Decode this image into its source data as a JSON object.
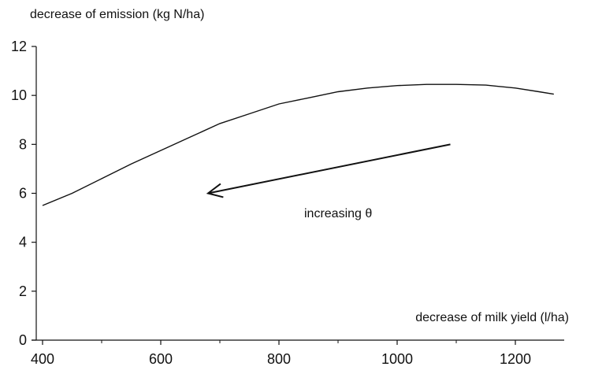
{
  "chart_data": {
    "type": "line",
    "title": "",
    "ylabel": "decrease of emission (kg N/ha)",
    "xlabel": "decrease of milk yield (l/ha)",
    "xlim": [
      400,
      1300
    ],
    "ylim": [
      0,
      12
    ],
    "x_ticks": [
      "400",
      "600",
      "800",
      "1000",
      "1200"
    ],
    "y_ticks": [
      "0",
      "2",
      "4",
      "6",
      "8",
      "10",
      "12"
    ],
    "grid": false,
    "series": [
      {
        "x": [
          400,
          450,
          500,
          550,
          600,
          650,
          700,
          750,
          800,
          850,
          900,
          950,
          1000,
          1050,
          1100,
          1150,
          1200,
          1240,
          1265
        ],
        "y": [
          5.5,
          6.0,
          6.6,
          7.2,
          7.75,
          8.3,
          8.85,
          9.25,
          9.65,
          9.9,
          10.15,
          10.3,
          10.4,
          10.45,
          10.45,
          10.42,
          10.3,
          10.15,
          10.05
        ]
      }
    ],
    "annotation": {
      "text": "increasing θ",
      "arrow_from": [
        1090,
        8.0
      ],
      "arrow_to": [
        680,
        6.0
      ]
    }
  }
}
